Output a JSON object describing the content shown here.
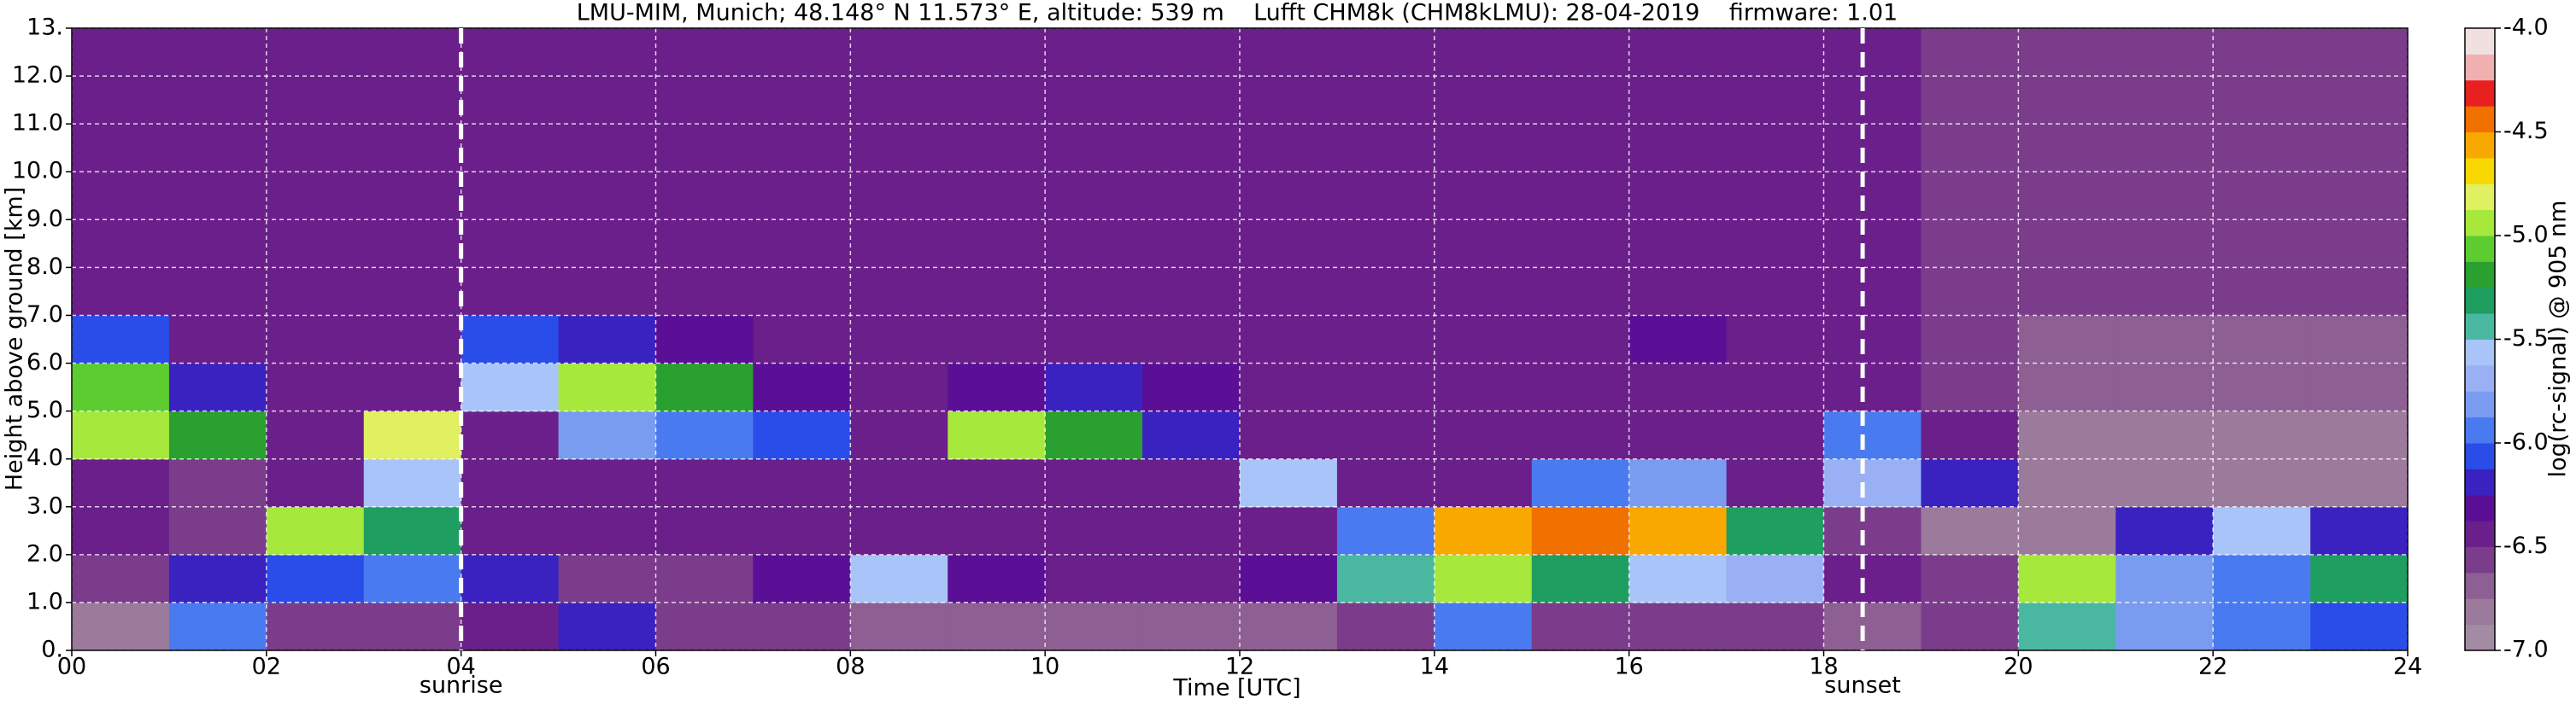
{
  "chart_data": {
    "type": "heatmap",
    "title": "LMU-MIM, Munich; 48.148° N 11.573° E, altitude: 539 m    Lufft CHM8k (CHM8kLMU): 28-04-2019    firmware: 1.01",
    "xlabel": "Time [UTC]",
    "ylabel": "Height above ground [km]",
    "colorbar_label": "log(rc-signal) @ 905 nm",
    "xlim": [
      0,
      24
    ],
    "ylim": [
      0,
      13
    ],
    "xticks": [
      {
        "value": 0,
        "label": "00"
      },
      {
        "value": 2,
        "label": "02"
      },
      {
        "value": 4,
        "label": "04"
      },
      {
        "value": 6,
        "label": "06"
      },
      {
        "value": 8,
        "label": "08"
      },
      10,
      12,
      14,
      16,
      18,
      20,
      22,
      24
    ],
    "yticks": [
      {
        "value": 0,
        "label": "0."
      },
      {
        "value": 1,
        "label": "1.0"
      },
      {
        "value": 2,
        "label": "2.0"
      },
      {
        "value": 3,
        "label": "3.0"
      },
      {
        "value": 4,
        "label": "4.0"
      },
      {
        "value": 5,
        "label": "5.0"
      },
      {
        "value": 6,
        "label": "6.0"
      },
      {
        "value": 7,
        "label": "7.0"
      },
      {
        "value": 8,
        "label": "8.0"
      },
      {
        "value": 9,
        "label": "9.0"
      },
      {
        "value": 10,
        "label": "10.0"
      },
      {
        "value": 11,
        "label": "11.0"
      },
      {
        "value": 12,
        "label": "12.0"
      },
      {
        "value": 13,
        "label": "13."
      }
    ],
    "grid": true,
    "grid_color": "#ffffff",
    "zlim": [
      -7,
      -4
    ],
    "zticks": [
      {
        "value": -7,
        "label": "-7.0"
      },
      {
        "value": -6.5,
        "label": "-6.5"
      },
      {
        "value": -6,
        "label": "-6.0"
      },
      {
        "value": -5.5,
        "label": "-5.5"
      },
      {
        "value": -5,
        "label": "-5.0"
      },
      {
        "value": -4.5,
        "label": "-4.5"
      },
      {
        "value": -4,
        "label": "-4.0"
      }
    ],
    "colorscale": [
      "#a38ca3",
      "#9b7a9b",
      "#8e5f93",
      "#7b3c8c",
      "#6a1f8a",
      "#5a0f96",
      "#3a22c0",
      "#2a4ce8",
      "#4a7af0",
      "#7a9cf0",
      "#9ab0f4",
      "#a8c4f8",
      "#4ab8a0",
      "#1e9e60",
      "#2aa030",
      "#5ccc30",
      "#a6e83c",
      "#e0f060",
      "#f8d800",
      "#f8a800",
      "#f07000",
      "#e82020",
      "#f0b0b0",
      "#f0e0e0"
    ],
    "x": [
      0.5,
      1.5,
      2.5,
      3.5,
      4.5,
      5.5,
      6.5,
      7.5,
      8.5,
      9.5,
      10.5,
      11.5,
      12.5,
      13.5,
      14.5,
      15.5,
      16.5,
      17.5,
      18.5,
      19.5,
      20.5,
      21.5,
      22.5,
      23.5
    ],
    "y": [
      0.5,
      1.5,
      2.5,
      3.5,
      4.5,
      5.5,
      6.5,
      7.5,
      8.5,
      9.5,
      10.5,
      11.5,
      12.5
    ],
    "z": [
      [
        -6.8,
        -6.0,
        -6.6,
        -6.6,
        -6.5,
        -6.2,
        -6.6,
        -6.6,
        -6.7,
        -6.7,
        -6.7,
        -6.7,
        -6.7,
        -6.6,
        -6.0,
        -6.6,
        -6.6,
        -6.6,
        -6.7,
        -6.6,
        -5.4,
        -5.8,
        -6.0,
        -6.1
      ],
      [
        -6.6,
        -6.2,
        -6.1,
        -6.0,
        -6.2,
        -6.6,
        -6.6,
        -6.3,
        -5.6,
        -6.3,
        -6.5,
        -6.4,
        -6.3,
        -5.5,
        -4.9,
        -5.3,
        -5.6,
        -5.7,
        -6.5,
        -6.6,
        -5.0,
        -5.8,
        -5.9,
        -5.3
      ],
      [
        -6.5,
        -6.6,
        -5.0,
        -5.3,
        -6.5,
        -6.5,
        -6.5,
        -6.5,
        -6.5,
        -6.5,
        -6.5,
        -6.5,
        -6.5,
        -5.9,
        -4.6,
        -4.4,
        -4.6,
        -5.3,
        -6.6,
        -6.8,
        -6.8,
        -6.2,
        -5.6,
        -6.2
      ],
      [
        -6.5,
        -6.6,
        -6.5,
        -5.6,
        -6.4,
        -6.5,
        -6.5,
        -6.5,
        -6.5,
        -6.5,
        -6.5,
        -6.5,
        -5.6,
        -6.5,
        -6.5,
        -5.9,
        -5.8,
        -6.4,
        -5.7,
        -6.2,
        -6.8,
        -6.8,
        -6.8,
        -6.8
      ],
      [
        -4.9,
        -5.2,
        -6.5,
        -4.8,
        -6.4,
        -5.8,
        -6.0,
        -6.1,
        -6.5,
        -5.0,
        -5.2,
        -6.2,
        -6.4,
        -6.5,
        -6.5,
        -6.4,
        -6.4,
        -6.5,
        -6.0,
        -6.5,
        -6.8,
        -6.8,
        -6.8,
        -6.8
      ],
      [
        -5.1,
        -6.2,
        -6.5,
        -6.4,
        -5.6,
        -5.0,
        -5.2,
        -6.3,
        -6.4,
        -6.3,
        -6.2,
        -6.3,
        -6.4,
        -6.4,
        -6.4,
        -6.4,
        -6.4,
        -6.4,
        -6.4,
        -6.6,
        -6.7,
        -6.7,
        -6.7,
        -6.7
      ],
      [
        -6.1,
        -6.4,
        -6.4,
        -6.4,
        -6.1,
        -6.2,
        -6.3,
        -6.4,
        -6.4,
        -6.4,
        -6.4,
        -6.4,
        -6.4,
        -6.4,
        -6.4,
        -6.4,
        -6.3,
        -6.4,
        -6.4,
        -6.6,
        -6.7,
        -6.7,
        -6.7,
        -6.7
      ],
      [
        -6.4,
        -6.4,
        -6.4,
        -6.4,
        -6.4,
        -6.4,
        -6.4,
        -6.4,
        -6.4,
        -6.4,
        -6.4,
        -6.4,
        -6.4,
        -6.4,
        -6.4,
        -6.4,
        -6.4,
        -6.4,
        -6.4,
        -6.6,
        -6.6,
        -6.6,
        -6.6,
        -6.6
      ],
      [
        -6.4,
        -6.4,
        -6.4,
        -6.4,
        -6.4,
        -6.4,
        -6.4,
        -6.4,
        -6.4,
        -6.4,
        -6.4,
        -6.4,
        -6.4,
        -6.4,
        -6.4,
        -6.4,
        -6.4,
        -6.4,
        -6.4,
        -6.6,
        -6.6,
        -6.6,
        -6.6,
        -6.6
      ],
      [
        -6.4,
        -6.4,
        -6.4,
        -6.4,
        -6.4,
        -6.4,
        -6.4,
        -6.4,
        -6.4,
        -6.4,
        -6.4,
        -6.4,
        -6.4,
        -6.4,
        -6.4,
        -6.4,
        -6.4,
        -6.4,
        -6.4,
        -6.6,
        -6.6,
        -6.6,
        -6.6,
        -6.6
      ],
      [
        -6.4,
        -6.4,
        -6.4,
        -6.4,
        -6.4,
        -6.4,
        -6.4,
        -6.4,
        -6.4,
        -6.4,
        -6.4,
        -6.4,
        -6.4,
        -6.4,
        -6.4,
        -6.4,
        -6.4,
        -6.4,
        -6.4,
        -6.6,
        -6.6,
        -6.6,
        -6.6,
        -6.6
      ],
      [
        -6.4,
        -6.4,
        -6.4,
        -6.4,
        -6.4,
        -6.4,
        -6.4,
        -6.4,
        -6.4,
        -6.4,
        -6.4,
        -6.4,
        -6.4,
        -6.4,
        -6.4,
        -6.4,
        -6.4,
        -6.4,
        -6.4,
        -6.6,
        -6.6,
        -6.6,
        -6.6,
        -6.6
      ],
      [
        -6.4,
        -6.4,
        -6.4,
        -6.4,
        -6.4,
        -6.4,
        -6.4,
        -6.4,
        -6.4,
        -6.4,
        -6.4,
        -6.4,
        -6.4,
        -6.4,
        -6.4,
        -6.4,
        -6.4,
        -6.4,
        -6.4,
        -6.6,
        -6.6,
        -6.6,
        -6.6,
        -6.6
      ]
    ],
    "annotations": [
      {
        "x": 4,
        "text": "sunrise"
      },
      {
        "x": 18.4,
        "text": "sunset"
      }
    ]
  }
}
